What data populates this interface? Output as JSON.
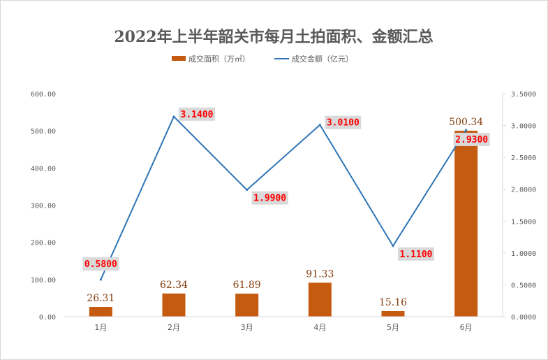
{
  "chart_data": {
    "type": "bar",
    "title": "2022年上半年韶关市每月土拍面积、金额汇总",
    "categories": [
      "1月",
      "2月",
      "3月",
      "4月",
      "5月",
      "6月"
    ],
    "series": [
      {
        "name": "成交面积（万㎡）",
        "type": "bar",
        "axis": "left",
        "values": [
          26.31,
          62.34,
          61.89,
          91.33,
          15.16,
          500.34
        ],
        "labels": [
          "26.31",
          "62.34",
          "61.89",
          "91.33",
          "15.16",
          "500.34"
        ],
        "color": "#c55a11"
      },
      {
        "name": "成交金额（亿元）",
        "type": "line",
        "axis": "right",
        "values": [
          0.58,
          3.14,
          1.99,
          3.01,
          1.11,
          2.93
        ],
        "labels": [
          "0.5800",
          "3.1400",
          "1.9900",
          "3.0100",
          "1.1100",
          "2.9300"
        ],
        "color": "#2e75b6"
      }
    ],
    "y_left": {
      "ylim": [
        0,
        600
      ],
      "ticks": [
        0,
        100,
        200,
        300,
        400,
        500,
        600
      ],
      "tick_labels": [
        "0.00",
        "100.00",
        "200.00",
        "300.00",
        "400.00",
        "500.00",
        "600.00"
      ]
    },
    "y_right": {
      "ylim": [
        0,
        3.5
      ],
      "ticks": [
        0,
        0.5,
        1.0,
        1.5,
        2.0,
        2.5,
        3.0,
        3.5
      ],
      "tick_labels": [
        "0.0000",
        "0.5000",
        "1.0000",
        "1.5000",
        "2.0000",
        "2.5000",
        "3.0000",
        "3.5000"
      ]
    },
    "grid": false,
    "legend_position": "top-center",
    "label_box_color": "#d9d9d9",
    "line_label_color": "#ff0000",
    "bar_label_color": "#843c0c",
    "axis_color": "#d9d9d9",
    "text_color": "#595959"
  }
}
